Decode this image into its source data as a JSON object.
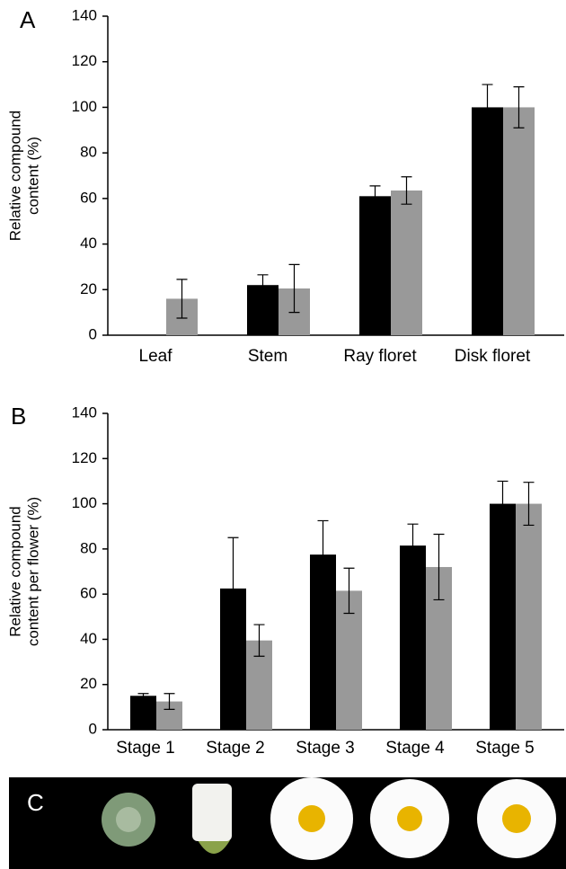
{
  "chart_data": [
    {
      "type": "bar",
      "panel_label": "A",
      "ylabel": [
        "Relative compound",
        "content (%)"
      ],
      "categories": [
        "Leaf",
        "Stem",
        "Ray floret",
        "Disk floret"
      ],
      "series": [
        {
          "color": "#000000",
          "values": [
            null,
            22,
            61,
            100
          ],
          "errors": [
            null,
            4.5,
            4.5,
            10
          ]
        },
        {
          "color": "#999999",
          "values": [
            16,
            20.5,
            63.5,
            100
          ],
          "errors": [
            8.5,
            10.5,
            6,
            9
          ]
        }
      ],
      "ylim": [
        0,
        140
      ],
      "yticks": [
        0,
        20,
        40,
        60,
        80,
        100,
        120,
        140
      ]
    },
    {
      "type": "bar",
      "panel_label": "B",
      "ylabel": [
        "Relative compound",
        "content per flower (%)"
      ],
      "categories": [
        "Stage 1",
        "Stage 2",
        "Stage 3",
        "Stage 4",
        "Stage 5"
      ],
      "series": [
        {
          "color": "#000000",
          "values": [
            15,
            62.5,
            77.5,
            81.5,
            100
          ],
          "errors": [
            1,
            22.5,
            15,
            9.5,
            10
          ]
        },
        {
          "color": "#999999",
          "values": [
            12.5,
            39.5,
            61.5,
            72,
            100
          ],
          "errors": [
            3.5,
            7,
            10,
            14.5,
            9.5
          ]
        }
      ],
      "ylim": [
        0,
        140
      ],
      "yticks": [
        0,
        20,
        40,
        60,
        80,
        100,
        120,
        140
      ]
    }
  ],
  "panel_c": {
    "label": "C"
  }
}
